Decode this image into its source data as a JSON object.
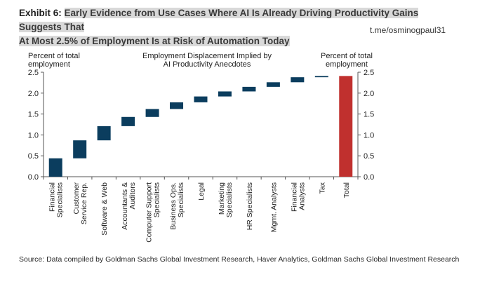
{
  "header": {
    "exhibit_label": "Exhibit 6:",
    "title_line1": "Early Evidence from Use Cases Where AI Is Already Driving Productivity Gains Suggests That",
    "title_line2": "At Most 2.5% of Employment Is at Risk of Automation Today",
    "watermark": "t.me/osminogpaul31"
  },
  "footer": {
    "source": "Source: Data compiled by Goldman Sachs Global Investment Research, Haver Analytics, Goldman Sachs Global Investment Research"
  },
  "colors": {
    "bar": "#0b3d5e",
    "total": "#c0302e",
    "axis": "#555555"
  },
  "chart_data": {
    "type": "bar",
    "subtype": "waterfall",
    "title": "Employment Displacement Implied by AI Productivity Anecdotes",
    "title_line1": "Employment Displacement Implied by",
    "title_line2": "AI Productivity Anecdotes",
    "ylabel_left_line1": "Percent of total",
    "ylabel_left_line2": "employment",
    "ylabel_right_line1": "Percent of total",
    "ylabel_right_line2": "employment",
    "ylim": [
      0,
      2.5
    ],
    "yticks": [
      "0.0",
      "0.5",
      "1.0",
      "1.5",
      "2.0",
      "2.5"
    ],
    "categories": [
      [
        "Financial",
        "Specialists"
      ],
      [
        "Customer",
        "Service Rep."
      ],
      [
        "Software & Web"
      ],
      [
        "Accountants &",
        "Auditors"
      ],
      [
        "Computer Support",
        "Specialists"
      ],
      [
        "Business Ops.",
        "Specialists"
      ],
      [
        "Legal"
      ],
      [
        "Marketing",
        "Specialists"
      ],
      [
        "HR Specialists"
      ],
      [
        "Mgmt. Analysts"
      ],
      [
        "Financial",
        "Analysts"
      ],
      [
        "Tax"
      ],
      [
        "Total"
      ]
    ],
    "bars": [
      {
        "start": 0.0,
        "end": 0.44
      },
      {
        "start": 0.44,
        "end": 0.87
      },
      {
        "start": 0.87,
        "end": 1.21
      },
      {
        "start": 1.21,
        "end": 1.43
      },
      {
        "start": 1.43,
        "end": 1.62
      },
      {
        "start": 1.62,
        "end": 1.78
      },
      {
        "start": 1.78,
        "end": 1.92
      },
      {
        "start": 1.92,
        "end": 2.04
      },
      {
        "start": 2.04,
        "end": 2.15
      },
      {
        "start": 2.15,
        "end": 2.26
      },
      {
        "start": 2.26,
        "end": 2.38
      },
      {
        "start": 2.38,
        "end": 2.41
      },
      {
        "start": 0.0,
        "end": 2.41
      }
    ],
    "grid": false,
    "legend": "none"
  }
}
